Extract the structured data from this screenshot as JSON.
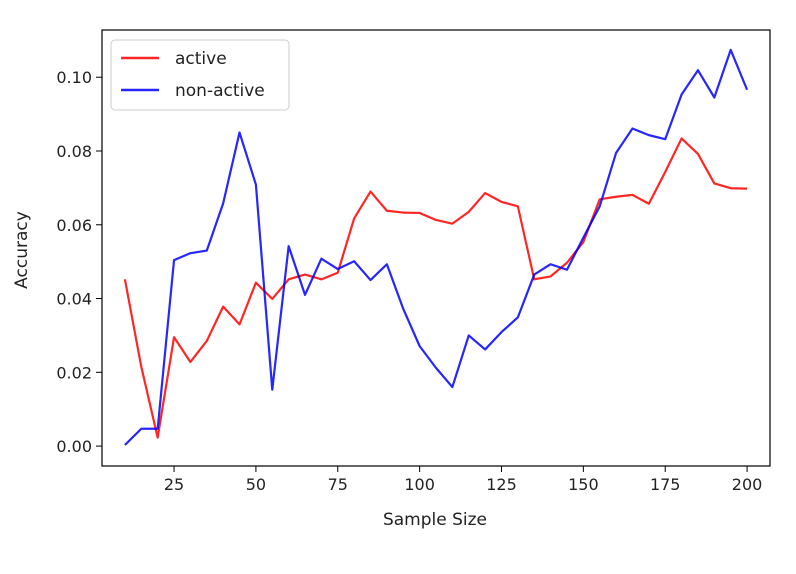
{
  "chart_data": {
    "type": "line",
    "title": "",
    "xlabel": "Sample Size",
    "ylabel": "Accuracy",
    "xlim": [
      3,
      207
    ],
    "ylim": [
      -0.0054,
      0.1128
    ],
    "xticks": [
      25,
      50,
      75,
      100,
      125,
      150,
      175,
      200
    ],
    "xtick_labels": [
      "25",
      "50",
      "75",
      "100",
      "125",
      "150",
      "175",
      "200"
    ],
    "yticks": [
      0.0,
      0.02,
      0.04,
      0.06,
      0.08,
      0.1
    ],
    "ytick_labels": [
      "0.00",
      "0.02",
      "0.04",
      "0.06",
      "0.08",
      "0.10"
    ],
    "grid": false,
    "legend_position": "top-left",
    "x": [
      10,
      15,
      20,
      25,
      30,
      35,
      40,
      45,
      50,
      55,
      60,
      65,
      70,
      75,
      80,
      85,
      90,
      95,
      100,
      105,
      110,
      115,
      120,
      125,
      130,
      135,
      140,
      145,
      150,
      155,
      160,
      165,
      170,
      175,
      180,
      185,
      190,
      195,
      200
    ],
    "series": [
      {
        "name": "active",
        "color": "#ff0000",
        "values": [
          0.0452,
          0.0215,
          0.0023,
          0.0295,
          0.0228,
          0.0285,
          0.0378,
          0.033,
          0.0443,
          0.0399,
          0.0452,
          0.0465,
          0.0452,
          0.047,
          0.0617,
          0.069,
          0.0638,
          0.0633,
          0.0632,
          0.0613,
          0.0603,
          0.0635,
          0.0686,
          0.0662,
          0.065,
          0.0452,
          0.046,
          0.0497,
          0.0553,
          0.0669,
          0.0676,
          0.0681,
          0.0657,
          0.0743,
          0.0834,
          0.0792,
          0.0712,
          0.0699,
          0.0698
        ]
      },
      {
        "name": "non-active",
        "color": "#0000ff",
        "values": [
          0.0003,
          0.0047,
          0.0047,
          0.0504,
          0.0523,
          0.053,
          0.0658,
          0.085,
          0.0709,
          0.0153,
          0.0542,
          0.041,
          0.0508,
          0.048,
          0.0501,
          0.045,
          0.0493,
          0.0372,
          0.0271,
          0.0212,
          0.016,
          0.03,
          0.0262,
          0.0309,
          0.0349,
          0.0465,
          0.0493,
          0.0478,
          0.0565,
          0.065,
          0.0795,
          0.0861,
          0.0843,
          0.0832,
          0.0953,
          0.1019,
          0.0945,
          0.1074,
          0.0966
        ]
      }
    ]
  }
}
